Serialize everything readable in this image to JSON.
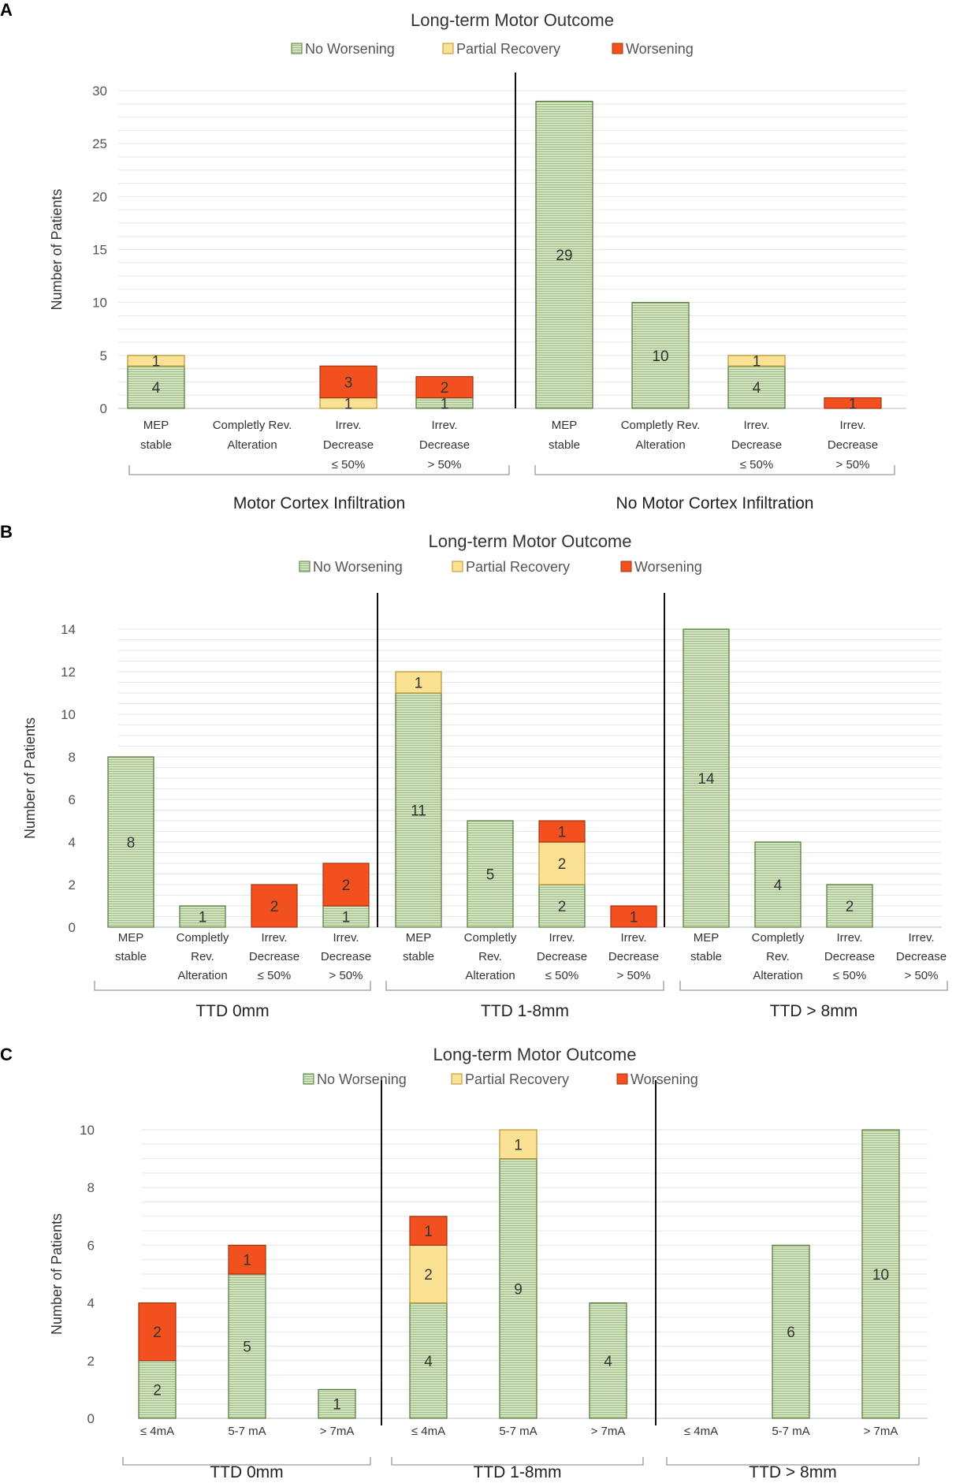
{
  "legend": [
    {
      "name": "No Worsening",
      "color": "#cfe0bd",
      "stroke": "#4f7a34",
      "pattern": "hatch"
    },
    {
      "name": "Partial Recovery",
      "color": "#fbe193",
      "stroke": "#b8922a"
    },
    {
      "name": "Worsening",
      "color": "#f2511f",
      "stroke": "#a53312"
    }
  ],
  "chart_data": [
    {
      "panel": "A",
      "type": "bar",
      "stacked": true,
      "title": "Long-term Motor Outcome",
      "ylabel": "Number of Patients",
      "ylim": [
        0,
        30
      ],
      "yticks": [
        0,
        5,
        10,
        15,
        20,
        25,
        30
      ],
      "groups": [
        {
          "label": "Motor Cortex Infiltration",
          "categories": [
            {
              "label": [
                "MEP",
                "stable"
              ],
              "values": [
                4,
                1,
                0
              ]
            },
            {
              "label": [
                "Completly Rev.",
                "Alteration"
              ],
              "values": [
                0,
                0,
                0
              ]
            },
            {
              "label": [
                "Irrev.",
                "Decrease",
                "≤ 50%"
              ],
              "values": [
                0,
                1,
                3
              ]
            },
            {
              "label": [
                "Irrev.",
                "Decrease",
                "> 50%"
              ],
              "values": [
                1,
                0,
                2
              ]
            }
          ]
        },
        {
          "label": "No Motor Cortex Infiltration",
          "categories": [
            {
              "label": [
                "MEP",
                "stable"
              ],
              "values": [
                29,
                0,
                0
              ]
            },
            {
              "label": [
                "Completly Rev.",
                "Alteration"
              ],
              "values": [
                10,
                0,
                0
              ]
            },
            {
              "label": [
                "Irrev.",
                "Decrease",
                "≤ 50%"
              ],
              "values": [
                4,
                1,
                0
              ]
            },
            {
              "label": [
                "Irrev.",
                "Decrease",
                "> 50%"
              ],
              "values": [
                0,
                0,
                1
              ]
            }
          ]
        }
      ]
    },
    {
      "panel": "B",
      "type": "bar",
      "stacked": true,
      "title": "Long-term Motor Outcome",
      "ylabel": "Number of Patients",
      "ylim": [
        0,
        14
      ],
      "yticks": [
        0,
        2,
        4,
        6,
        8,
        10,
        12,
        14
      ],
      "groups": [
        {
          "label": "TTD 0mm",
          "categories": [
            {
              "label": [
                "MEP",
                "stable"
              ],
              "values": [
                8,
                0,
                0
              ]
            },
            {
              "label": [
                "Completly",
                "Rev.",
                "Alteration"
              ],
              "values": [
                1,
                0,
                0
              ]
            },
            {
              "label": [
                "Irrev.",
                "Decrease",
                "≤ 50%"
              ],
              "values": [
                0,
                0,
                2
              ]
            },
            {
              "label": [
                "Irrev.",
                "Decrease",
                "> 50%"
              ],
              "values": [
                1,
                0,
                2
              ]
            }
          ]
        },
        {
          "label": "TTD 1-8mm",
          "categories": [
            {
              "label": [
                "MEP",
                "stable"
              ],
              "values": [
                11,
                1,
                0
              ]
            },
            {
              "label": [
                "Completly",
                "Rev.",
                "Alteration"
              ],
              "values": [
                5,
                0,
                0
              ]
            },
            {
              "label": [
                "Irrev.",
                "Decrease",
                "≤ 50%"
              ],
              "values": [
                2,
                2,
                1
              ]
            },
            {
              "label": [
                "Irrev.",
                "Decrease",
                "> 50%"
              ],
              "values": [
                0,
                0,
                1
              ]
            }
          ]
        },
        {
          "label": "TTD > 8mm",
          "categories": [
            {
              "label": [
                "MEP",
                "stable"
              ],
              "values": [
                14,
                0,
                0
              ]
            },
            {
              "label": [
                "Completly",
                "Rev.",
                "Alteration"
              ],
              "values": [
                4,
                0,
                0
              ]
            },
            {
              "label": [
                "Irrev.",
                "Decrease",
                "≤ 50%"
              ],
              "values": [
                2,
                0,
                0
              ]
            },
            {
              "label": [
                "Irrev.",
                "Decrease",
                "> 50%"
              ],
              "values": [
                0,
                0,
                0
              ]
            }
          ]
        }
      ]
    },
    {
      "panel": "C",
      "type": "bar",
      "stacked": true,
      "title": "Long-term Motor Outcome",
      "ylabel": "Number of Patients",
      "ylim": [
        0,
        10
      ],
      "yticks": [
        0,
        2,
        4,
        6,
        8,
        10
      ],
      "groups": [
        {
          "label": "TTD 0mm",
          "categories": [
            {
              "label": [
                "≤ 4mA"
              ],
              "values": [
                2,
                0,
                2
              ]
            },
            {
              "label": [
                "5-7 mA"
              ],
              "values": [
                5,
                0,
                1
              ]
            },
            {
              "label": [
                "> 7mA"
              ],
              "values": [
                1,
                0,
                0
              ]
            }
          ]
        },
        {
          "label": "TTD 1-8mm",
          "categories": [
            {
              "label": [
                "≤ 4mA"
              ],
              "values": [
                4,
                2,
                1
              ]
            },
            {
              "label": [
                "5-7 mA"
              ],
              "values": [
                9,
                1,
                0
              ]
            },
            {
              "label": [
                "> 7mA"
              ],
              "values": [
                4,
                0,
                0
              ]
            }
          ]
        },
        {
          "label": "TTD > 8mm",
          "categories": [
            {
              "label": [
                "≤ 4mA"
              ],
              "values": [
                0,
                0,
                0
              ]
            },
            {
              "label": [
                "5-7 mA"
              ],
              "values": [
                6,
                0,
                0
              ]
            },
            {
              "label": [
                "> 7mA"
              ],
              "values": [
                10,
                0,
                0
              ]
            }
          ]
        }
      ]
    }
  ]
}
